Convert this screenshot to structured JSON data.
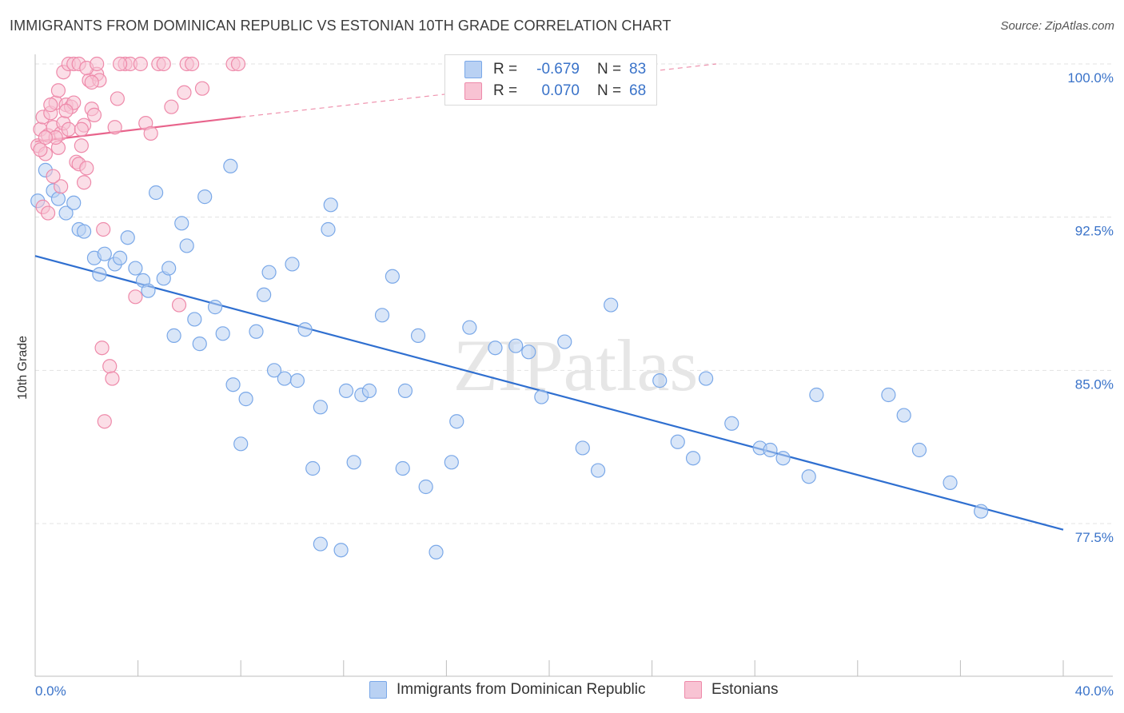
{
  "title": "IMMIGRANTS FROM DOMINICAN REPUBLIC VS ESTONIAN 10TH GRADE CORRELATION CHART",
  "source": "Source: ZipAtlas.com",
  "watermark": "ZIPatlas",
  "legend": {
    "rows": [
      {
        "r_label": "R =",
        "r_value": "-0.679",
        "n_label": "N =",
        "n_value": "83",
        "color": "#7aa8e8",
        "fill": "#b9d1f3"
      },
      {
        "r_label": "R =",
        "r_value": "0.070",
        "n_label": "N =",
        "n_value": "68",
        "color": "#ee8aaa",
        "fill": "#f8c3d3"
      }
    ]
  },
  "bottom_legend": [
    {
      "label": "Immigrants from Dominican Republic",
      "fill": "#b9d1f3",
      "color": "#7aa8e8"
    },
    {
      "label": "Estonians",
      "fill": "#f8c3d3",
      "color": "#ee8aaa"
    }
  ],
  "chart_data": {
    "type": "scatter",
    "ylabel": "10th Grade",
    "xlabel": "",
    "xlim": [
      0,
      40
    ],
    "ylim": [
      70.5,
      100.8
    ],
    "x_tick_labels": [
      {
        "value": 0,
        "label": "0.0%"
      },
      {
        "value": 40,
        "label": "40.0%"
      }
    ],
    "y_ticks": [
      {
        "value": 100,
        "label": "100.0%"
      },
      {
        "value": 92.5,
        "label": "92.5%"
      },
      {
        "value": 85,
        "label": "85.0%"
      },
      {
        "value": 77.5,
        "label": "77.5%"
      }
    ],
    "x_minor_ticks": [
      0,
      4,
      8,
      12,
      16,
      20,
      24,
      28,
      32,
      36,
      40
    ],
    "grid": true,
    "series": [
      {
        "name": "Immigrants from Dominican Republic",
        "color": "#7aa8e8",
        "fill": "#b9d1f3",
        "trend": {
          "x": [
            0,
            40
          ],
          "y": [
            90.6,
            77.2
          ],
          "color": "#2f6fd0",
          "style": "solid"
        },
        "points": [
          [
            0.1,
            93.3
          ],
          [
            0.4,
            94.8
          ],
          [
            0.7,
            93.8
          ],
          [
            0.9,
            93.4
          ],
          [
            1.2,
            92.7
          ],
          [
            1.5,
            93.2
          ],
          [
            1.7,
            91.9
          ],
          [
            1.9,
            91.8
          ],
          [
            2.3,
            90.5
          ],
          [
            2.5,
            89.7
          ],
          [
            2.7,
            90.7
          ],
          [
            3.1,
            90.2
          ],
          [
            3.3,
            90.5
          ],
          [
            3.6,
            91.5
          ],
          [
            3.9,
            90.0
          ],
          [
            4.2,
            89.4
          ],
          [
            4.4,
            88.9
          ],
          [
            4.7,
            93.7
          ],
          [
            5.0,
            89.5
          ],
          [
            5.2,
            90.0
          ],
          [
            5.4,
            86.7
          ],
          [
            5.7,
            92.2
          ],
          [
            5.9,
            91.1
          ],
          [
            6.2,
            87.5
          ],
          [
            6.4,
            86.3
          ],
          [
            6.6,
            93.5
          ],
          [
            7.0,
            88.1
          ],
          [
            7.3,
            86.8
          ],
          [
            7.6,
            95.0
          ],
          [
            7.7,
            84.3
          ],
          [
            8.2,
            83.6
          ],
          [
            8.0,
            81.4
          ],
          [
            8.6,
            86.9
          ],
          [
            8.9,
            88.7
          ],
          [
            9.1,
            89.8
          ],
          [
            9.3,
            85.0
          ],
          [
            9.7,
            84.6
          ],
          [
            10.0,
            90.2
          ],
          [
            10.2,
            84.5
          ],
          [
            10.5,
            87.0
          ],
          [
            10.8,
            80.2
          ],
          [
            11.1,
            83.2
          ],
          [
            11.1,
            76.5
          ],
          [
            11.4,
            91.9
          ],
          [
            11.5,
            93.1
          ],
          [
            11.9,
            76.2
          ],
          [
            12.1,
            84.0
          ],
          [
            12.4,
            80.5
          ],
          [
            12.7,
            83.8
          ],
          [
            13.0,
            84.0
          ],
          [
            13.5,
            87.7
          ],
          [
            13.9,
            89.6
          ],
          [
            14.3,
            80.2
          ],
          [
            14.4,
            84.0
          ],
          [
            14.9,
            86.7
          ],
          [
            15.2,
            79.3
          ],
          [
            15.6,
            76.1
          ],
          [
            16.2,
            80.5
          ],
          [
            16.4,
            82.5
          ],
          [
            16.9,
            87.1
          ],
          [
            17.9,
            86.1
          ],
          [
            18.7,
            86.2
          ],
          [
            19.2,
            85.9
          ],
          [
            19.7,
            83.7
          ],
          [
            20.6,
            86.4
          ],
          [
            21.3,
            81.2
          ],
          [
            21.9,
            80.1
          ],
          [
            22.4,
            88.2
          ],
          [
            24.3,
            84.5
          ],
          [
            25.0,
            81.5
          ],
          [
            25.6,
            80.7
          ],
          [
            26.1,
            84.6
          ],
          [
            27.1,
            82.4
          ],
          [
            28.2,
            81.2
          ],
          [
            28.6,
            81.1
          ],
          [
            29.1,
            80.7
          ],
          [
            30.1,
            79.8
          ],
          [
            30.4,
            83.8
          ],
          [
            33.2,
            83.8
          ],
          [
            33.8,
            82.8
          ],
          [
            34.4,
            81.1
          ],
          [
            35.6,
            79.5
          ],
          [
            36.8,
            78.1
          ]
        ]
      },
      {
        "name": "Estonians",
        "color": "#ee8aaa",
        "fill": "#f8c3d3",
        "trend": {
          "x": [
            0,
            8
          ],
          "y": [
            96.2,
            97.4
          ],
          "x_dash_end": 26.5,
          "y_dash_end": 100.0,
          "color": "#e8648c",
          "style": "solid+dashed"
        },
        "points": [
          [
            0.1,
            96.0
          ],
          [
            0.2,
            96.8
          ],
          [
            0.3,
            97.4
          ],
          [
            0.4,
            95.6
          ],
          [
            0.5,
            96.5
          ],
          [
            0.6,
            97.6
          ],
          [
            0.7,
            96.9
          ],
          [
            0.8,
            98.1
          ],
          [
            0.9,
            95.9
          ],
          [
            1.0,
            96.6
          ],
          [
            1.1,
            97.1
          ],
          [
            1.2,
            98.0
          ],
          [
            1.3,
            96.8
          ],
          [
            1.4,
            97.9
          ],
          [
            1.5,
            98.1
          ],
          [
            1.6,
            95.2
          ],
          [
            1.7,
            95.1
          ],
          [
            1.8,
            96.0
          ],
          [
            1.9,
            97.0
          ],
          [
            2.0,
            94.9
          ],
          [
            2.1,
            99.2
          ],
          [
            2.2,
            97.8
          ],
          [
            2.3,
            97.5
          ],
          [
            2.4,
            99.5
          ],
          [
            2.5,
            99.2
          ],
          [
            2.6,
            86.1
          ],
          [
            2.65,
            91.9
          ],
          [
            2.7,
            82.5
          ],
          [
            2.9,
            85.2
          ],
          [
            3.0,
            84.6
          ],
          [
            3.1,
            96.9
          ],
          [
            3.2,
            98.3
          ],
          [
            3.5,
            100.0
          ],
          [
            3.7,
            100.0
          ],
          [
            3.9,
            88.6
          ],
          [
            4.1,
            100.0
          ],
          [
            4.3,
            97.1
          ],
          [
            4.5,
            96.6
          ],
          [
            4.8,
            100.0
          ],
          [
            5.0,
            100.0
          ],
          [
            5.3,
            97.9
          ],
          [
            5.6,
            88.2
          ],
          [
            5.8,
            98.6
          ],
          [
            5.9,
            100.0
          ],
          [
            6.1,
            100.0
          ],
          [
            6.5,
            98.8
          ],
          [
            7.7,
            100.0
          ],
          [
            7.9,
            100.0
          ],
          [
            0.3,
            93.0
          ],
          [
            0.5,
            92.7
          ],
          [
            1.0,
            94.0
          ],
          [
            0.2,
            95.8
          ],
          [
            0.7,
            94.5
          ],
          [
            0.6,
            98.0
          ],
          [
            0.9,
            98.7
          ],
          [
            1.1,
            99.6
          ],
          [
            1.3,
            100.0
          ],
          [
            1.5,
            100.0
          ],
          [
            1.7,
            100.0
          ],
          [
            2.0,
            99.8
          ],
          [
            1.9,
            94.2
          ],
          [
            1.8,
            96.8
          ],
          [
            2.2,
            99.1
          ],
          [
            3.3,
            100.0
          ],
          [
            2.4,
            100.0
          ],
          [
            0.8,
            96.4
          ],
          [
            1.2,
            97.7
          ],
          [
            0.4,
            96.4
          ]
        ]
      }
    ]
  }
}
